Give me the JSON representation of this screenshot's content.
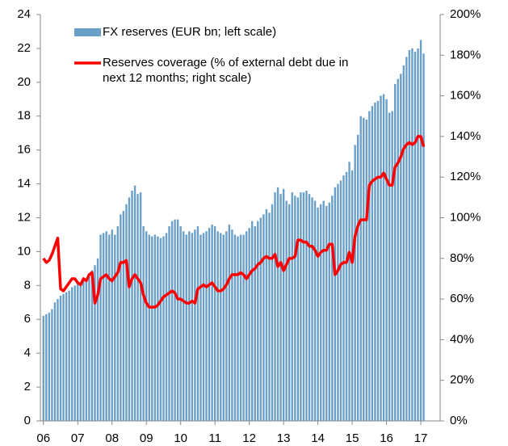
{
  "chart_data": {
    "type": "bar_line",
    "categories": [
      "06",
      null,
      null,
      null,
      null,
      null,
      null,
      null,
      null,
      null,
      null,
      null,
      "07",
      null,
      null,
      null,
      null,
      null,
      null,
      null,
      null,
      null,
      null,
      null,
      "08",
      null,
      null,
      null,
      null,
      null,
      null,
      null,
      null,
      null,
      null,
      null,
      "09",
      null,
      null,
      null,
      null,
      null,
      null,
      null,
      null,
      null,
      null,
      null,
      "10",
      null,
      null,
      null,
      null,
      null,
      null,
      null,
      null,
      null,
      null,
      null,
      "11",
      null,
      null,
      null,
      null,
      null,
      null,
      null,
      null,
      null,
      null,
      null,
      "12",
      null,
      null,
      null,
      null,
      null,
      null,
      null,
      null,
      null,
      null,
      null,
      "13",
      null,
      null,
      null,
      null,
      null,
      null,
      null,
      null,
      null,
      null,
      null,
      "14",
      null,
      null,
      null,
      null,
      null,
      null,
      null,
      null,
      null,
      null,
      null,
      "15",
      null,
      null,
      null,
      null,
      null,
      null,
      null,
      null,
      null,
      null,
      null,
      "16",
      null,
      null,
      null,
      null,
      null,
      null,
      null,
      null,
      null,
      null,
      null,
      "17",
      null
    ],
    "series": [
      {
        "name": "FX reserves (EUR bn; left scale)",
        "color": "#6a9fc8",
        "kind": "bar",
        "values": [
          6.2,
          6.3,
          6.4,
          6.6,
          7.0,
          7.2,
          7.4,
          7.5,
          7.6,
          7.7,
          7.9,
          8.0,
          8.1,
          8.2,
          8.3,
          8.2,
          8.5,
          8.9,
          9.2,
          9.6,
          11.0,
          11.1,
          11.2,
          11.0,
          11.3,
          11.0,
          11.5,
          12.2,
          12.4,
          12.8,
          13.2,
          13.6,
          13.9,
          13.4,
          13.5,
          11.5,
          11.2,
          11.0,
          10.9,
          11.0,
          10.9,
          10.8,
          10.9,
          11.1,
          11.5,
          11.8,
          11.9,
          11.9,
          11.5,
          11.2,
          11.0,
          11.2,
          11.1,
          11.3,
          11.5,
          11.0,
          11.1,
          11.2,
          11.4,
          11.6,
          11.5,
          11.2,
          11.1,
          11.0,
          11.2,
          11.6,
          11.3,
          11.0,
          10.9,
          11.0,
          11.0,
          11.2,
          11.4,
          11.8,
          11.5,
          11.8,
          12.0,
          12.2,
          12.5,
          12.3,
          12.8,
          13.5,
          13.8,
          13.4,
          13.7,
          13.0,
          12.8,
          13.5,
          13.3,
          13.2,
          13.5,
          13.5,
          13.6,
          13.4,
          13.2,
          13.0,
          12.6,
          12.8,
          13.0,
          12.7,
          12.9,
          13.3,
          13.8,
          14.0,
          14.2,
          14.5,
          14.7,
          15.3,
          14.8,
          16.3,
          16.9,
          18.0,
          17.9,
          17.8,
          18.3,
          18.6,
          18.8,
          18.9,
          19.2,
          19.3,
          19.0,
          18.2,
          18.3,
          19.9,
          20.2,
          20.5,
          21.0,
          21.5,
          21.9,
          22.0,
          21.8,
          22.0,
          22.5,
          21.7
        ]
      },
      {
        "name": "Reserves coverage (% of external debt due in next 12 months; right scale)",
        "color": "#ff0000",
        "kind": "line",
        "axis": "y2",
        "values": [
          80,
          78,
          79,
          82,
          86,
          90,
          65,
          64,
          66,
          68,
          70,
          70,
          68,
          67,
          70,
          69,
          72,
          73,
          58,
          62,
          70,
          71,
          72,
          70,
          69,
          71,
          73,
          78,
          78,
          79,
          66,
          70,
          72,
          70,
          68,
          62,
          58,
          56,
          56,
          56,
          57,
          59,
          61,
          62,
          63,
          64,
          63,
          60,
          60,
          59,
          58,
          58,
          59,
          58,
          65,
          66,
          67,
          66,
          67,
          68,
          66,
          64,
          64,
          65,
          67,
          70,
          72,
          72,
          72,
          73,
          72,
          70,
          72,
          74,
          75,
          77,
          78,
          80,
          81,
          80,
          80,
          82,
          76,
          78,
          74,
          77,
          80,
          80,
          81,
          89,
          89,
          88,
          88,
          86,
          86,
          84,
          81,
          83,
          84,
          84,
          87,
          87,
          72,
          74,
          77,
          78,
          78,
          83,
          78,
          91,
          96,
          99,
          99,
          99,
          116,
          118,
          119,
          120,
          120,
          122,
          119,
          116,
          116,
          125,
          127,
          130,
          134,
          136,
          137,
          136,
          137,
          140,
          140,
          135
        ]
      }
    ],
    "ylim": [
      0,
      24
    ],
    "yticks": [
      0,
      2,
      4,
      6,
      8,
      10,
      12,
      14,
      16,
      18,
      20,
      22,
      24
    ],
    "y2lim": [
      0,
      200
    ],
    "y2ticks": [
      {
        "value": 0,
        "label": "0%"
      },
      {
        "value": 20,
        "label": "20%"
      },
      {
        "value": 40,
        "label": "40%"
      },
      {
        "value": 60,
        "label": "60%"
      },
      {
        "value": 80,
        "label": "80%"
      },
      {
        "value": 100,
        "label": "100%"
      },
      {
        "value": 120,
        "label": "120%"
      },
      {
        "value": 140,
        "label": "140%"
      },
      {
        "value": 160,
        "label": "160%"
      },
      {
        "value": 180,
        "label": "180%"
      },
      {
        "value": 200,
        "label": "200%"
      }
    ]
  }
}
